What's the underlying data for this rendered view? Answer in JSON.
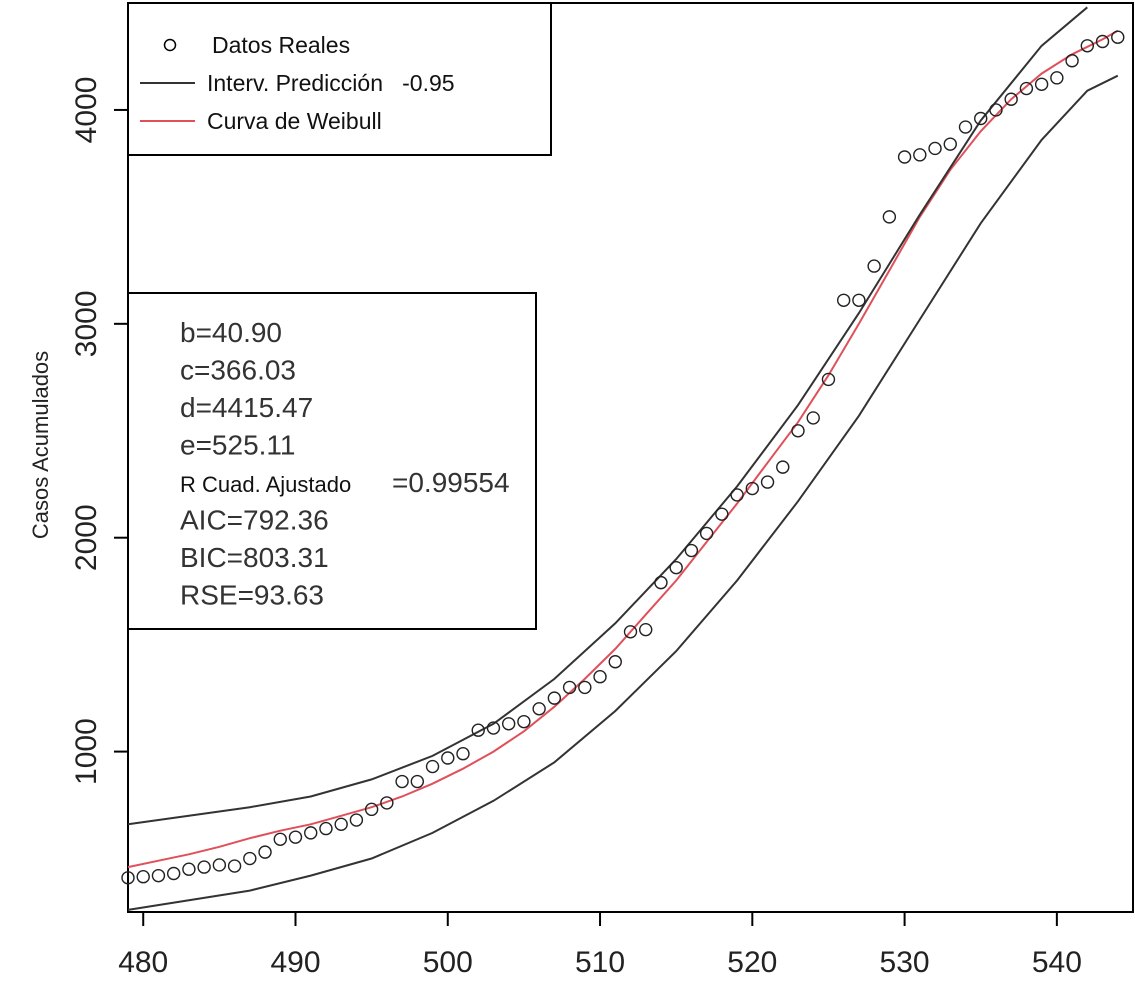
{
  "chart_data": {
    "type": "scatter",
    "title": "",
    "xlabel": "",
    "ylabel": "Casos Acumulados",
    "xlim": [
      479,
      545
    ],
    "ylim": [
      250,
      4500
    ],
    "xticks": [
      480,
      490,
      500,
      510,
      520,
      530,
      540
    ],
    "yticks": [
      1000,
      2000,
      3000,
      4000
    ],
    "grid": false,
    "legend_position": "top-left",
    "legend": [
      {
        "label": "Datos Reales",
        "marker": "open-circle",
        "color": "#000000"
      },
      {
        "label": "Interv. Predicción   -0.95",
        "marker": "line",
        "color": "#333333"
      },
      {
        "label": "Curva de Weibull",
        "marker": "line",
        "color": "#e0505a"
      }
    ],
    "model": {
      "b": 40.9,
      "c": 366.03,
      "d": 4415.47,
      "e": 525.11
    },
    "stats_lines": [
      {
        "label": "b=40.90"
      },
      {
        "label": "c=366.03"
      },
      {
        "label": "d=4415.47"
      },
      {
        "label": "e=525.11"
      },
      {
        "label": "R Cuad. Ajustado",
        "value": "=0.99554"
      },
      {
        "label": "AIC=792.36"
      },
      {
        "label": "BIC=803.31"
      },
      {
        "label": "RSE=93.63"
      }
    ],
    "series": [
      {
        "name": "Datos Reales",
        "type": "scatter",
        "x": [
          479,
          480,
          481,
          482,
          483,
          484,
          485,
          486,
          487,
          488,
          489,
          490,
          491,
          492,
          493,
          494,
          495,
          496,
          497,
          498,
          499,
          500,
          501,
          502,
          503,
          504,
          505,
          506,
          507,
          508,
          509,
          510,
          511,
          512,
          513,
          514,
          515,
          516,
          517,
          518,
          519,
          520,
          521,
          522,
          523,
          524,
          525,
          526,
          527,
          528,
          529,
          530,
          531,
          532,
          533,
          534,
          535,
          536,
          537,
          538,
          539,
          540,
          541,
          542,
          543,
          544
        ],
        "y": [
          410,
          415,
          420,
          430,
          450,
          460,
          470,
          465,
          500,
          530,
          590,
          600,
          620,
          640,
          660,
          680,
          730,
          760,
          860,
          860,
          930,
          970,
          990,
          1100,
          1110,
          1130,
          1140,
          1200,
          1250,
          1300,
          1300,
          1350,
          1420,
          1560,
          1570,
          1790,
          1860,
          1940,
          2020,
          2110,
          2200,
          2230,
          2260,
          2330,
          2500,
          2560,
          2740,
          3110,
          3110,
          3270,
          3500,
          3780,
          3790,
          3820,
          3840,
          3920,
          3960,
          4000,
          4050,
          4100,
          4120,
          4150,
          4230,
          4300,
          4320,
          4340
        ]
      },
      {
        "name": "Curva de Weibull",
        "type": "line",
        "color": "#e0505a",
        "x": [
          479,
          481,
          483,
          485,
          487,
          489,
          491,
          493,
          495,
          497,
          499,
          501,
          503,
          505,
          507,
          509,
          511,
          513,
          515,
          517,
          519,
          521,
          523,
          525,
          527,
          529,
          531,
          533,
          535,
          537,
          539,
          541,
          543,
          544
        ],
        "y": [
          460,
          490,
          520,
          555,
          595,
          630,
          660,
          700,
          740,
          790,
          850,
          920,
          1000,
          1095,
          1210,
          1340,
          1480,
          1640,
          1800,
          1980,
          2160,
          2350,
          2540,
          2760,
          3000,
          3250,
          3500,
          3720,
          3900,
          4050,
          4170,
          4260,
          4330,
          4370
        ]
      },
      {
        "name": "Interv. Predicción -0.95 (superior)",
        "type": "line",
        "color": "#333333",
        "x": [
          479,
          483,
          487,
          491,
          495,
          499,
          503,
          507,
          511,
          515,
          519,
          523,
          527,
          531,
          535,
          539,
          542
        ],
        "y": [
          660,
          700,
          740,
          790,
          870,
          980,
          1130,
          1340,
          1600,
          1900,
          2240,
          2620,
          3050,
          3510,
          3950,
          4300,
          4480
        ]
      },
      {
        "name": "Interv. Predicción -0.95 (inferior)",
        "type": "line",
        "color": "#333333",
        "x": [
          479,
          483,
          487,
          491,
          495,
          499,
          503,
          507,
          511,
          515,
          519,
          523,
          527,
          531,
          535,
          539,
          542,
          544
        ],
        "y": [
          260,
          305,
          350,
          420,
          500,
          620,
          770,
          950,
          1190,
          1470,
          1800,
          2170,
          2570,
          3020,
          3470,
          3860,
          4090,
          4160
        ]
      }
    ]
  }
}
